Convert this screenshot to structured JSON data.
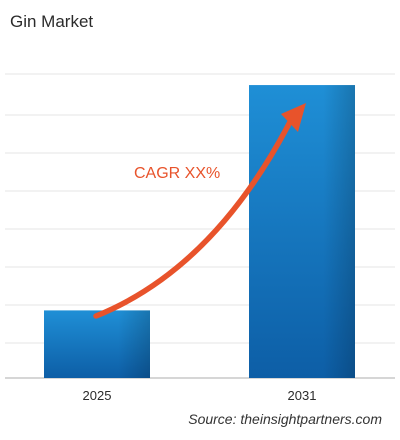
{
  "chart_data": {
    "type": "bar",
    "title": "Gin Market",
    "categories": [
      "2025",
      "2031"
    ],
    "values": [
      0.9,
      3.9
    ],
    "ylim": [
      0,
      4.5
    ],
    "xlabel": "",
    "ylabel": "",
    "grid": true,
    "annotation": "CAGR XX%",
    "source": "Source: theinsightpartners.com"
  },
  "colors": {
    "bar_top": "#1f8fd6",
    "bar_bottom": "#0d5ea6",
    "arrow": "#e8532b",
    "grid": "#e4e4e4",
    "axis": "#bdbdbd",
    "text": "#2b2b2b"
  },
  "icons": {
    "growth_arrow": "trend-arrow-icon"
  }
}
